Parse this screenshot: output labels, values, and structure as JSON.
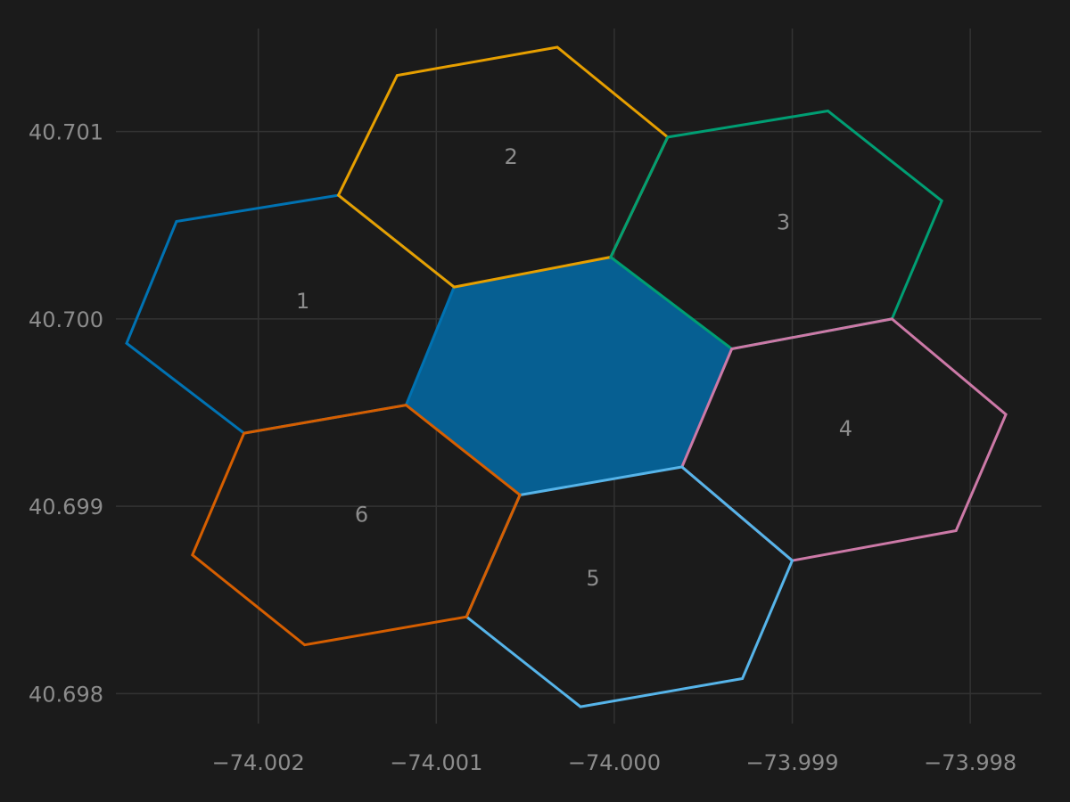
{
  "chart_data": {
    "type": "map-hexagons",
    "title": "",
    "xlabel": "",
    "ylabel": "",
    "xlim": [
      -74.0028,
      -73.9976
    ],
    "ylim": [
      40.69784,
      40.70155
    ],
    "grid": true,
    "background": "#1b1b1b",
    "x_ticks": [
      {
        "value": -74.002,
        "label": "−74.002"
      },
      {
        "value": -74.001,
        "label": "−74.001"
      },
      {
        "value": -74.0,
        "label": "−74.000"
      },
      {
        "value": -73.999,
        "label": "−73.999"
      },
      {
        "value": -73.998,
        "label": "−73.998"
      }
    ],
    "y_ticks": [
      {
        "value": 40.701,
        "label": "40.701"
      },
      {
        "value": 40.7,
        "label": "40.700"
      },
      {
        "value": 40.699,
        "label": "40.699"
      },
      {
        "value": 40.698,
        "label": "40.698"
      }
    ],
    "center_hexagon": {
      "fill": "#065f92",
      "vertices": [
        [
          -74.0009,
          40.70017
        ],
        [
          -74.00002,
          40.70033
        ],
        [
          -73.99934,
          40.69984
        ],
        [
          -73.99962,
          40.69921
        ],
        [
          -74.00053,
          40.69906
        ],
        [
          -74.00117,
          40.69954
        ]
      ]
    },
    "hexagons": [
      {
        "label": "1",
        "color": "#0072b2",
        "label_pos": [
          -74.00175,
          40.7001
        ],
        "vertices": [
          [
            -74.00246,
            40.70052
          ],
          [
            -74.00155,
            40.70066
          ],
          [
            -74.0009,
            40.70017
          ],
          [
            -74.00117,
            40.69954
          ],
          [
            -74.00208,
            40.69939
          ],
          [
            -74.00274,
            40.69987
          ]
        ]
      },
      {
        "label": "2",
        "color": "#e69f00",
        "label_pos": [
          -74.00058,
          40.70087
        ],
        "vertices": [
          [
            -74.00122,
            40.7013
          ],
          [
            -74.00032,
            40.70145
          ],
          [
            -73.9997,
            40.70097
          ],
          [
            -74.00002,
            40.70033
          ],
          [
            -74.0009,
            40.70017
          ],
          [
            -74.00155,
            40.70066
          ]
        ]
      },
      {
        "label": "3",
        "color": "#009e73",
        "label_pos": [
          -73.99905,
          40.70052
        ],
        "vertices": [
          [
            -73.9997,
            40.70097
          ],
          [
            -73.9988,
            40.70111
          ],
          [
            -73.99816,
            40.70063
          ],
          [
            -73.99844,
            40.7
          ],
          [
            -73.99934,
            40.69984
          ],
          [
            -74.00002,
            40.70033
          ]
        ]
      },
      {
        "label": "4",
        "color": "#cc79a7",
        "label_pos": [
          -73.9987,
          40.69942
        ],
        "vertices": [
          [
            -73.99934,
            40.69984
          ],
          [
            -73.99844,
            40.7
          ],
          [
            -73.9978,
            40.69949
          ],
          [
            -73.99808,
            40.69887
          ],
          [
            -73.999,
            40.69871
          ],
          [
            -73.99962,
            40.69921
          ]
        ]
      },
      {
        "label": "5",
        "color": "#56b4e9",
        "label_pos": [
          -74.00012,
          40.69862
        ],
        "vertices": [
          [
            -74.00053,
            40.69906
          ],
          [
            -73.99962,
            40.69921
          ],
          [
            -73.999,
            40.69871
          ],
          [
            -73.99928,
            40.69808
          ],
          [
            -74.00019,
            40.69793
          ],
          [
            -74.00083,
            40.69841
          ]
        ]
      },
      {
        "label": "6",
        "color": "#d55e00",
        "label_pos": [
          -74.00142,
          40.69896
        ],
        "vertices": [
          [
            -74.00208,
            40.69939
          ],
          [
            -74.00117,
            40.69954
          ],
          [
            -74.00053,
            40.69906
          ],
          [
            -74.00083,
            40.69841
          ],
          [
            -74.00174,
            40.69826
          ],
          [
            -74.00237,
            40.69874
          ]
        ]
      }
    ]
  }
}
